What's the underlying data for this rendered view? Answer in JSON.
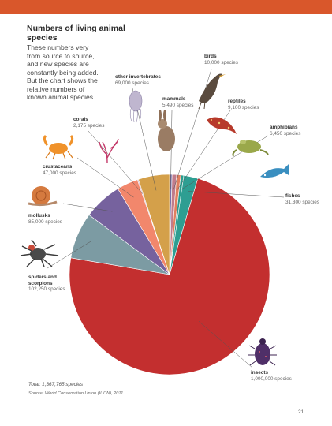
{
  "header": {
    "bar_color": "#d9572b"
  },
  "title": "Numbers of living animal species",
  "intro": "These numbers very from source to source, and new species are constantly being added. But the chart shows the relative numbers of known animal species.",
  "total": "Total: 1,367,765 species",
  "source": "Source: World Conservation Union (IUCN), 2011",
  "page_number": "21",
  "chart_data": {
    "type": "pie",
    "title": "Numbers of living animal species",
    "start": "top, clockwise",
    "slices": [
      {
        "name": "mammals",
        "label": "5,490 species",
        "value": 5490,
        "color": "#7b6fa8",
        "icon": "rabbit-icon"
      },
      {
        "name": "birds",
        "label": "10,000 species",
        "value": 10000,
        "color": "#c07c8c",
        "icon": "bird-icon"
      },
      {
        "name": "reptiles",
        "label": "9,100 species",
        "value": 9100,
        "color": "#e07f5f",
        "icon": "lizard-icon"
      },
      {
        "name": "amphibians",
        "label": "6,450 species",
        "value": 6450,
        "color": "#2a9d8f",
        "icon": "frog-icon"
      },
      {
        "name": "fishes",
        "label": "31,300 species",
        "value": 31300,
        "color": "#2e9e92",
        "icon": "fish-icon"
      },
      {
        "name": "insects",
        "label": "1,000,000 species",
        "value": 1000000,
        "color": "#c32f2f",
        "icon": "beetle-icon"
      },
      {
        "name": "spiders and scorpions",
        "label": "102,250 species",
        "value": 102250,
        "color": "#7c9ba3",
        "icon": "spider-icon"
      },
      {
        "name": "mollusks",
        "label": "85,000 species",
        "value": 85000,
        "color": "#76629e",
        "icon": "snail-icon"
      },
      {
        "name": "crustaceans",
        "label": "47,000 species",
        "value": 47000,
        "color": "#f2876c",
        "icon": "crab-icon"
      },
      {
        "name": "corals",
        "label": "2,175 species",
        "value": 2175,
        "color": "#c8a3b8",
        "icon": "coral-icon"
      },
      {
        "name": "other invertebrates",
        "label": "69,000 species",
        "value": 69000,
        "color": "#d4a04a",
        "icon": "jellyfish-icon"
      }
    ]
  }
}
